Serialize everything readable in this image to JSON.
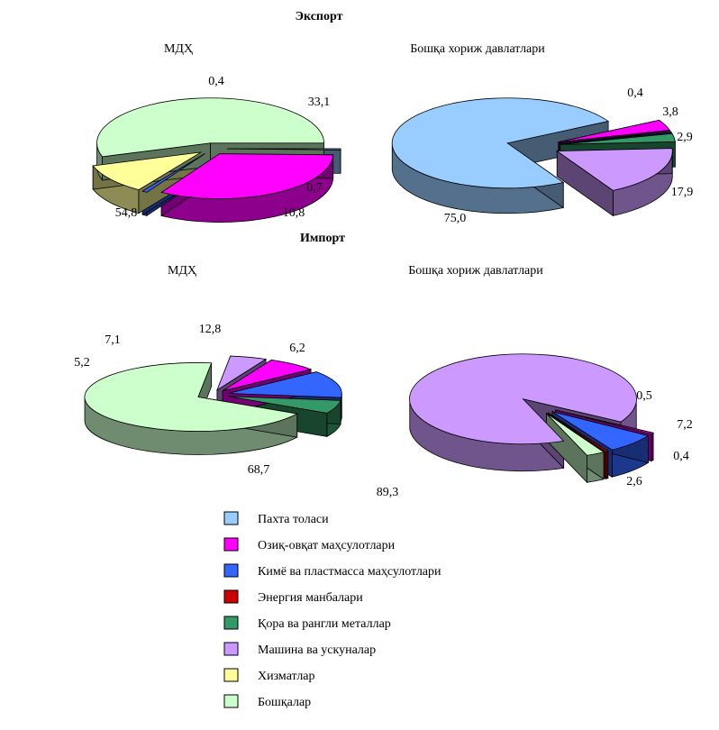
{
  "sections": {
    "export_title": "Экспорт",
    "import_title": "Импорт"
  },
  "legend": [
    {
      "label": "Пахта толаси",
      "color": "#99ccff"
    },
    {
      "label": "Озиқ-овқат маҳсулотлари",
      "color": "#ff00ff"
    },
    {
      "label": "Кимё ва пластмасса маҳсулотлари",
      "color": "#3366ff"
    },
    {
      "label": "Энергия манбалари",
      "color": "#cc0000"
    },
    {
      "label": "Қора ва рангли металлар",
      "color": "#339966"
    },
    {
      "label": "Машина ва ускуналар",
      "color": "#cc99ff"
    },
    {
      "label": "Хизматлар",
      "color": "#ffff99"
    },
    {
      "label": "Бошқалар",
      "color": "#ccffcc"
    }
  ],
  "chart_data": [
    {
      "type": "pie",
      "group": "Экспорт",
      "title": "МДҲ",
      "slices": [
        {
          "category": "Пахта толаси",
          "value": 0.4,
          "label": "0,4"
        },
        {
          "category": "Озиқ-овқат маҳсулотлари",
          "value": 33.1,
          "label": "33,1"
        },
        {
          "category": "Кимё ва пластмасса маҳсулотлари",
          "value": 0.7,
          "label": "0,7"
        },
        {
          "category": "Хизматлар",
          "value": 10.8,
          "label": "10,8"
        },
        {
          "category": "Бошқалар",
          "value": 54.8,
          "label": "54,8"
        }
      ]
    },
    {
      "type": "pie",
      "group": "Экспорт",
      "title": "Бошқа хориж давлатлари",
      "slices": [
        {
          "category": "Пахта толаси",
          "value": 75.0,
          "label": "75,0"
        },
        {
          "category": "Озиқ-овқат маҳсулотлари",
          "value": 3.8,
          "label": "3,8"
        },
        {
          "category": "Кимё ва пластмасса маҳсулотлари",
          "value": 0.4,
          "label": "0,4"
        },
        {
          "category": "Қора ва рангли металлар",
          "value": 2.9,
          "label": "2,9"
        },
        {
          "category": "Машина ва ускуналар",
          "value": 17.9,
          "label": "17,9"
        }
      ]
    },
    {
      "type": "pie",
      "group": "Импорт",
      "title": "МДҲ",
      "slices": [
        {
          "category": "Кимё ва пластмасса маҳсулотлари",
          "value": 12.8,
          "label": "12,8"
        },
        {
          "category": "Қора ва рангли металлар",
          "value": 6.2,
          "label": "6,2"
        },
        {
          "category": "Бошқалар",
          "value": 68.7,
          "label": "68,7"
        },
        {
          "category": "Машина ва ускуналар",
          "value": 5.2,
          "label": "5,2"
        },
        {
          "category": "Озиқ-овқат маҳсулотлари",
          "value": 7.1,
          "label": "7,1"
        }
      ]
    },
    {
      "type": "pie",
      "group": "Импорт",
      "title": "Бошқа хориж давлатлари",
      "slices": [
        {
          "category": "Машина ва ускуналар",
          "value": 89.3,
          "label": "89,3"
        },
        {
          "category": "Озиқ-овқат маҳсулотлари",
          "value": 0.5,
          "label": "0,5"
        },
        {
          "category": "Кимё ва пластмасса маҳсулотлари",
          "value": 7.2,
          "label": "7,2"
        },
        {
          "category": "Энергия манбалари",
          "value": 0.4,
          "label": "0,4"
        },
        {
          "category": "Бошқалар",
          "value": 2.6,
          "label": "2,6"
        }
      ]
    }
  ]
}
